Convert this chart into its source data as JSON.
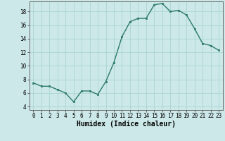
{
  "x": [
    0,
    1,
    2,
    3,
    4,
    5,
    6,
    7,
    8,
    9,
    10,
    11,
    12,
    13,
    14,
    15,
    16,
    17,
    18,
    19,
    20,
    21,
    22,
    23
  ],
  "y": [
    7.5,
    7.0,
    7.0,
    6.5,
    6.0,
    4.7,
    6.3,
    6.3,
    5.8,
    7.7,
    10.5,
    14.3,
    16.5,
    17.0,
    17.0,
    19.0,
    19.2,
    18.0,
    18.2,
    17.5,
    15.5,
    13.3,
    13.0,
    12.3
  ],
  "line_color": "#2d7a6a",
  "marker": "s",
  "marker_size": 2.0,
  "bg_color": "#cce8e8",
  "grid_color": "#aad4d4",
  "xlabel": "Humidex (Indice chaleur)",
  "ylim": [
    3.5,
    19.5
  ],
  "xlim": [
    -0.5,
    23.5
  ],
  "yticks": [
    4,
    6,
    8,
    10,
    12,
    14,
    16,
    18
  ],
  "xticks": [
    0,
    1,
    2,
    3,
    4,
    5,
    6,
    7,
    8,
    9,
    10,
    11,
    12,
    13,
    14,
    15,
    16,
    17,
    18,
    19,
    20,
    21,
    22,
    23
  ],
  "tick_fontsize": 5.5,
  "xlabel_fontsize": 7.0,
  "line_width": 1.0
}
